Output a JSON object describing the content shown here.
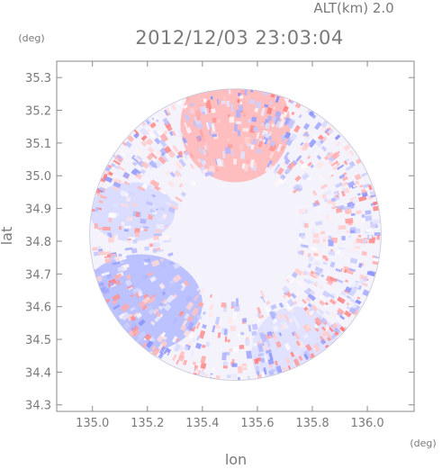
{
  "header": {
    "altitude": "ALT(km)  2.0",
    "timestamp": "2012/12/03 23:03:04"
  },
  "axes": {
    "y_unit": "(deg)",
    "x_unit": "(deg)",
    "ylabel": "lat",
    "xlabel": "lon"
  },
  "chart_data": {
    "type": "heatmap",
    "title": "2012/12/03 23:03:04",
    "subtitle": "ALT(km)  2.0",
    "xlabel": "lon",
    "ylabel": "lat",
    "x_unit": "(deg)",
    "y_unit": "(deg)",
    "xlim": [
      134.87,
      136.17
    ],
    "ylim": [
      34.28,
      35.35
    ],
    "x_ticks": [
      "135.0",
      "135.2",
      "135.4",
      "135.6",
      "135.8",
      "136.0"
    ],
    "y_ticks": [
      "34.3",
      "34.4",
      "34.5",
      "34.6",
      "34.7",
      "34.8",
      "34.9",
      "35.0",
      "35.1",
      "35.2",
      "35.3"
    ],
    "radar_center": [
      135.52,
      34.82
    ],
    "radar_range_deg": 0.53,
    "colormap": {
      "negative": "#7a84ff",
      "zero": "#ffffff",
      "positive": "#ff6e6e"
    },
    "regions": [
      {
        "name": "positive lobe (north-east)",
        "lon": [
          135.32,
          135.72
        ],
        "lat": [
          34.98,
          35.33
        ],
        "level": 0.5
      },
      {
        "name": "negative lobe (west)",
        "lon": [
          134.95,
          135.4
        ],
        "lat": [
          34.46,
          34.76
        ],
        "level": -0.55
      },
      {
        "name": "negative lobe (north-west)",
        "lon": [
          134.99,
          135.3
        ],
        "lat": [
          34.8,
          34.98
        ],
        "level": -0.3
      },
      {
        "name": "negative lobe (south-east)",
        "lon": [
          135.58,
          135.9
        ],
        "lat": [
          34.32,
          34.6
        ],
        "level": -0.25
      }
    ]
  }
}
